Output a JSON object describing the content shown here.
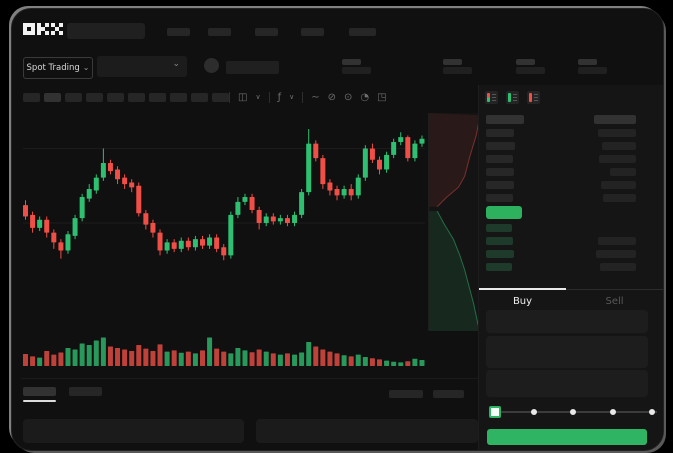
{
  "brand": {
    "name": "OKX"
  },
  "header": {
    "market_selector_label": "Spot Trading",
    "nav_placeholder_count": 5,
    "stat_group_count": 4
  },
  "toolbar": {
    "timeframe_button_count": 10,
    "active_timeframe_index": 1,
    "icons": [
      "chart-type",
      "indicators",
      "compare",
      "draw",
      "camera",
      "alerts",
      "fullscreen"
    ]
  },
  "orderbook": {
    "view_icons": [
      "orderbook-combined-icon",
      "orderbook-bids-icon",
      "orderbook-asks-icon"
    ],
    "ask_row_count": 6,
    "bid_row_count": 4,
    "has_header_row": true
  },
  "trade_panel": {
    "buy_tab_label": "Buy",
    "sell_tab_label": "Sell",
    "active_tab": "Buy",
    "input_row_count": 3,
    "slider_steps": 5,
    "slider_value_index": 0
  },
  "colors": {
    "up_green": "#2fbf71",
    "down_red": "#ef4f47",
    "accent_green": "#2fb463",
    "price_highlight_green": "#2db15e"
  },
  "chart_data": {
    "type": "candlestick+volume",
    "title": "",
    "axes_labeled": false,
    "price_scale": "relative 0-100 (no visible axis labels)",
    "gridlines_price": [
      88,
      42
    ],
    "candles": [
      [
        53,
        56,
        44,
        46
      ],
      [
        47,
        49,
        36,
        39
      ],
      [
        39,
        46,
        37,
        44
      ],
      [
        44,
        46,
        33,
        36
      ],
      [
        36,
        38,
        26,
        30
      ],
      [
        30,
        32,
        20,
        25
      ],
      [
        25,
        37,
        23,
        35
      ],
      [
        34,
        47,
        32,
        45
      ],
      [
        45,
        60,
        43,
        58
      ],
      [
        57,
        66,
        55,
        63
      ],
      [
        62,
        72,
        60,
        70
      ],
      [
        70,
        88,
        68,
        79
      ],
      [
        79,
        81,
        72,
        74
      ],
      [
        75,
        77,
        66,
        69
      ],
      [
        70,
        72,
        63,
        66
      ],
      [
        67,
        69,
        61,
        64
      ],
      [
        65,
        67,
        46,
        48
      ],
      [
        48,
        50,
        38,
        41
      ],
      [
        42,
        44,
        33,
        36
      ],
      [
        36,
        38,
        22,
        25
      ],
      [
        25,
        32,
        23,
        30
      ],
      [
        30,
        32,
        24,
        26
      ],
      [
        26,
        33,
        24,
        31
      ],
      [
        31,
        33,
        25,
        27
      ],
      [
        27,
        34,
        25,
        32
      ],
      [
        32,
        34,
        26,
        28
      ],
      [
        28,
        35,
        26,
        33
      ],
      [
        33,
        35,
        24,
        26
      ],
      [
        27,
        29,
        19,
        22
      ],
      [
        22,
        49,
        20,
        47
      ],
      [
        47,
        58,
        45,
        55
      ],
      [
        55,
        60,
        53,
        58
      ],
      [
        58,
        60,
        48,
        50
      ],
      [
        50,
        52,
        38,
        42
      ],
      [
        42,
        48,
        40,
        46
      ],
      [
        46,
        48,
        41,
        43
      ],
      [
        43,
        47,
        41,
        45
      ],
      [
        45,
        47,
        40,
        42
      ],
      [
        42,
        49,
        40,
        47
      ],
      [
        47,
        63,
        45,
        61
      ],
      [
        61,
        100,
        59,
        91
      ],
      [
        91,
        93,
        80,
        82
      ],
      [
        82,
        84,
        63,
        66
      ],
      [
        67,
        69,
        59,
        62
      ],
      [
        63,
        65,
        56,
        59
      ],
      [
        59,
        65,
        57,
        63
      ],
      [
        63,
        66,
        56,
        59
      ],
      [
        59,
        72,
        57,
        70
      ],
      [
        70,
        90,
        68,
        88
      ],
      [
        88,
        91,
        79,
        81
      ],
      [
        81,
        83,
        72,
        75
      ],
      [
        75,
        86,
        73,
        84
      ],
      [
        84,
        94,
        82,
        92
      ],
      [
        92,
        98,
        90,
        95
      ],
      [
        95,
        96,
        80,
        82
      ],
      [
        82,
        93,
        80,
        91
      ],
      [
        91,
        96,
        89,
        94
      ]
    ],
    "volumes": [
      40,
      32,
      28,
      50,
      38,
      45,
      60,
      55,
      75,
      70,
      85,
      95,
      65,
      60,
      55,
      50,
      70,
      58,
      50,
      72,
      48,
      52,
      44,
      48,
      42,
      52,
      95,
      58,
      48,
      42,
      60,
      52,
      46,
      55,
      48,
      42,
      38,
      42,
      38,
      45,
      80,
      65,
      55,
      48,
      42,
      36,
      32,
      38,
      30,
      26,
      22,
      18,
      14,
      12,
      16,
      24,
      20
    ],
    "depth": {
      "orientation": "vertical (asks top, bids bottom)",
      "asks_boundary": [
        [
          1,
          0.01
        ],
        [
          0.93,
          0.1
        ],
        [
          0.8,
          0.2
        ],
        [
          0.7,
          0.29
        ],
        [
          0.58,
          0.34
        ],
        [
          0.33,
          0.39
        ],
        [
          0.16,
          0.43
        ]
      ],
      "bids_boundary": [
        [
          0.16,
          0.45
        ],
        [
          0.3,
          0.51
        ],
        [
          0.48,
          0.58
        ],
        [
          0.6,
          0.65
        ],
        [
          0.7,
          0.72
        ],
        [
          0.79,
          0.8
        ],
        [
          0.88,
          0.88
        ],
        [
          0.96,
          0.97
        ],
        [
          1,
          1
        ]
      ]
    }
  }
}
